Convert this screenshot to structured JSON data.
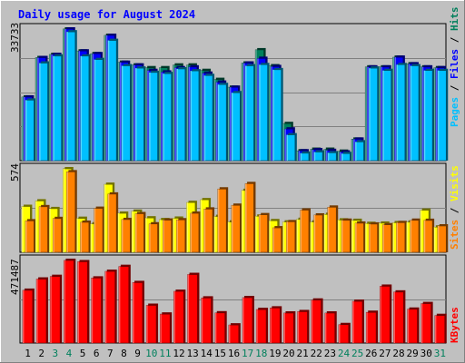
{
  "title": "Daily usage for August 2024",
  "colors": {
    "background": "#c0c0c0",
    "title": "#0000ff",
    "hits": "#00805c",
    "files": "#0000ff",
    "pages": "#00c0ff",
    "visits": "#ffff00",
    "sites": "#ff8000",
    "kbytes": "#ff0000",
    "weekend": "#00805c",
    "weekday": "#000000"
  },
  "chart_data": [
    {
      "type": "bar",
      "title": "Daily usage for August 2024",
      "x": [
        "1",
        "2",
        "3",
        "4",
        "5",
        "6",
        "7",
        "8",
        "9",
        "10",
        "11",
        "12",
        "13",
        "14",
        "15",
        "16",
        "17",
        "18",
        "19",
        "20",
        "21",
        "22",
        "23",
        "24",
        "25",
        "26",
        "27",
        "28",
        "29",
        "30",
        "31"
      ],
      "weekend_days": [
        "3",
        "4",
        "10",
        "11",
        "17",
        "18",
        "24",
        "25",
        "31"
      ],
      "ymax_label": "33733",
      "ymax": 33733,
      "series_labels": {
        "pages": "Pages",
        "files": "Files",
        "hits": "Hits",
        "sep": " / "
      },
      "series": [
        {
          "key": "hits",
          "values": [
            16300,
            26400,
            27200,
            33733,
            28100,
            27400,
            32100,
            25200,
            24500,
            23800,
            23800,
            24500,
            24500,
            23100,
            20800,
            18800,
            25000,
            28400,
            24300,
            9500,
            2500,
            2900,
            2900,
            2400,
            5500,
            24000,
            24000,
            26500,
            24800,
            24000,
            23800
          ]
        },
        {
          "key": "files",
          "values": [
            16300,
            26400,
            27200,
            33733,
            28100,
            27400,
            32100,
            25200,
            24500,
            23100,
            22700,
            23800,
            24000,
            22400,
            20100,
            18800,
            25000,
            26200,
            24100,
            8100,
            2500,
            2800,
            2600,
            2200,
            5500,
            24000,
            24000,
            26500,
            24800,
            24000,
            23800
          ]
        },
        {
          "key": "pages",
          "values": [
            15500,
            25000,
            26800,
            33000,
            26800,
            25900,
            30800,
            24300,
            23700,
            22600,
            22300,
            23500,
            23000,
            21800,
            19500,
            17400,
            24300,
            24600,
            23300,
            6600,
            1900,
            2200,
            2000,
            1800,
            4800,
            23700,
            23100,
            24600,
            24300,
            23100,
            23100
          ]
        }
      ]
    },
    {
      "type": "bar",
      "ymax_label": "574",
      "ymax": 574,
      "series_labels": {
        "sites": "Sites",
        "visits": "Visits",
        "sep": " / "
      },
      "series": [
        {
          "key": "visits",
          "values": [
            315,
            353,
            300,
            574,
            233,
            195,
            467,
            268,
            282,
            236,
            224,
            234,
            342,
            361,
            246,
            208,
            425,
            248,
            217,
            208,
            226,
            208,
            260,
            222,
            219,
            198,
            200,
            203,
            207,
            289,
            173
          ]
        },
        {
          "key": "sites",
          "values": [
            216,
            313,
            232,
            553,
            206,
            302,
            400,
            225,
            265,
            195,
            221,
            223,
            268,
            297,
            435,
            323,
            472,
            258,
            168,
            210,
            290,
            256,
            310,
            220,
            200,
            194,
            189,
            204,
            220,
            219,
            181
          ]
        }
      ]
    },
    {
      "type": "bar",
      "ymax_label": "471487",
      "ymax": 471487,
      "series_labels": {
        "kbytes": "KBytes"
      },
      "series": [
        {
          "key": "kbytes",
          "values": [
            301000,
            365000,
            380000,
            471487,
            464000,
            371000,
            409000,
            437000,
            345000,
            215000,
            165000,
            295000,
            391000,
            257000,
            172000,
            103000,
            259000,
            191000,
            200000,
            171000,
            179000,
            245000,
            171000,
            105000,
            238000,
            175000,
            324000,
            291000,
            193000,
            225000,
            157000
          ]
        }
      ]
    }
  ]
}
